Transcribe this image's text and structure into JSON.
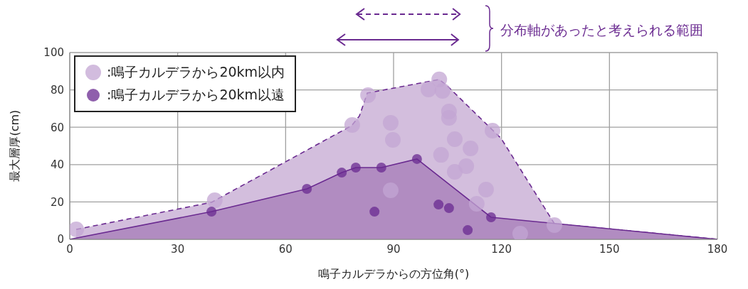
{
  "chart_data": {
    "type": "scatter",
    "xlabel": "鳴子カルデラからの方位角(°)",
    "ylabel": "最大層厚(cm)",
    "annotations": [
      "分布軸があったと考えられる範囲"
    ],
    "xlim": [
      0,
      180
    ],
    "xticks": [
      0,
      30,
      60,
      90,
      120,
      150,
      180
    ],
    "ylim": [
      0,
      100
    ],
    "yticks": [
      0,
      20,
      40,
      60,
      80,
      100
    ],
    "grid": true,
    "legend": "top left",
    "marker": "circle",
    "series": [
      {
        "type": "area",
        "marker": "none",
        "line_style": "dashed",
        "color": "#d3bedd",
        "x": [
          1.8,
          39.4,
          78.3,
          80.5,
          82.7,
          102.7,
          105,
          119.9,
          134.7,
          180
        ],
        "values": [
          5.3,
          19.8,
          60.8,
          66,
          78.3,
          85.6,
          82,
          54,
          8.4,
          0
        ]
      },
      {
        "type": "area",
        "marker": "none",
        "line_style": "solid",
        "color": "#b18cc1",
        "x": [
          0,
          39.4,
          65.9,
          75.6,
          79.5,
          86.6,
          96.5,
          117.1,
          180
        ],
        "values": [
          0,
          14.8,
          27,
          35.7,
          38.4,
          38.4,
          43,
          11.8,
          0
        ]
      },
      {
        "name": ":鳴子カルデラから20km以内",
        "color": "#c3a6d3",
        "x": [
          1.8,
          40.3,
          78.5,
          82.9,
          89.2,
          89.8,
          99.7,
          102.7,
          103.6,
          105.4,
          105.4,
          107,
          103.2,
          111.4,
          107,
          110.2,
          115.7,
          113.1,
          117.5,
          89.2,
          125.2,
          134.7
        ],
        "values": [
          5.3,
          20.9,
          61.2,
          77.2,
          62.4,
          53.2,
          80.2,
          85.6,
          79.5,
          68.4,
          65,
          53.6,
          45.2,
          48.7,
          36.1,
          39.2,
          26.6,
          19,
          58.2,
          26.2,
          3,
          7.6
        ]
      },
      {
        "name": ":鳴子カルデラから20km以遠",
        "color": "#6a2a90",
        "x": [
          39.4,
          65.9,
          75.6,
          79.5,
          86.6,
          96.5,
          84.7,
          102.5,
          105.4,
          110.6,
          117.1
        ],
        "values": [
          14.8,
          27,
          35.7,
          38.4,
          38.4,
          43,
          14.8,
          18.6,
          16.7,
          4.9,
          11.8
        ]
      }
    ]
  }
}
